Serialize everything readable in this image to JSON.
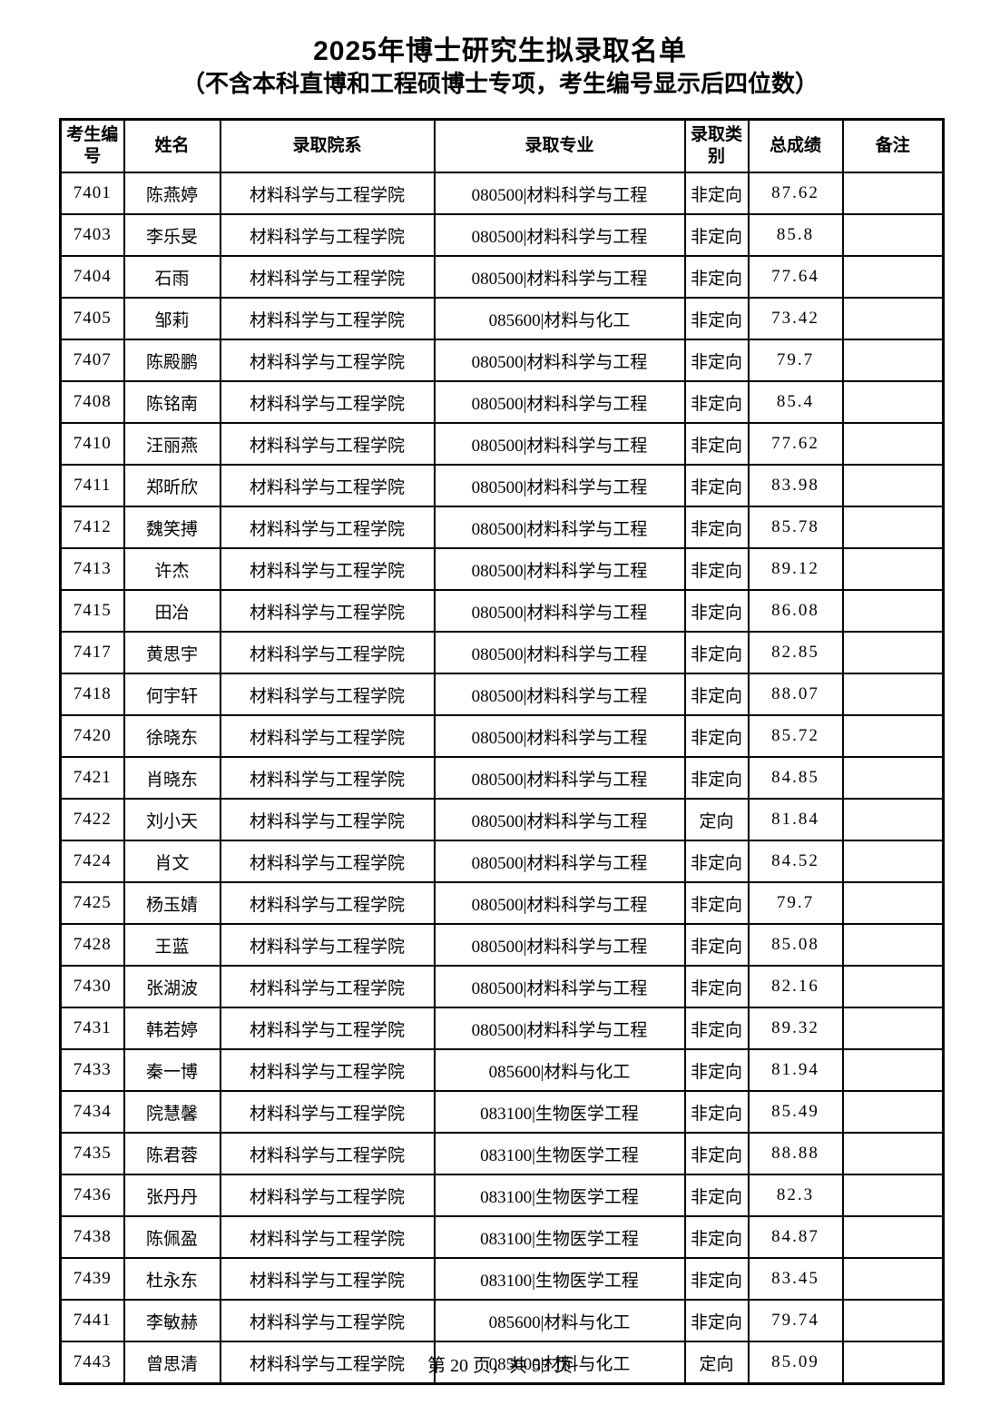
{
  "page": {
    "title": "2025年博士研究生拟录取名单",
    "subtitle": "（不含本科直博和工程硕博士专项，考生编号显示后四位数）",
    "footer": "第 20 页，共 55 页"
  },
  "table": {
    "columns": [
      "id",
      "name",
      "dept",
      "major",
      "category",
      "score",
      "remark"
    ],
    "headers": [
      "考生编号",
      "姓名",
      "录取院系",
      "录取专业",
      "录取类别",
      "总成绩",
      "备注"
    ],
    "rows": [
      {
        "id": "7401",
        "name": "陈燕婷",
        "dept": "材料科学与工程学院",
        "major": "080500|材料科学与工程",
        "category": "非定向",
        "score": "87.62",
        "remark": ""
      },
      {
        "id": "7403",
        "name": "李乐旻",
        "dept": "材料科学与工程学院",
        "major": "080500|材料科学与工程",
        "category": "非定向",
        "score": "85.8",
        "remark": ""
      },
      {
        "id": "7404",
        "name": "石雨",
        "dept": "材料科学与工程学院",
        "major": "080500|材料科学与工程",
        "category": "非定向",
        "score": "77.64",
        "remark": ""
      },
      {
        "id": "7405",
        "name": "邹莉",
        "dept": "材料科学与工程学院",
        "major": "085600|材料与化工",
        "category": "非定向",
        "score": "73.42",
        "remark": ""
      },
      {
        "id": "7407",
        "name": "陈殿鹏",
        "dept": "材料科学与工程学院",
        "major": "080500|材料科学与工程",
        "category": "非定向",
        "score": "79.7",
        "remark": ""
      },
      {
        "id": "7408",
        "name": "陈铭南",
        "dept": "材料科学与工程学院",
        "major": "080500|材料科学与工程",
        "category": "非定向",
        "score": "85.4",
        "remark": ""
      },
      {
        "id": "7410",
        "name": "汪丽燕",
        "dept": "材料科学与工程学院",
        "major": "080500|材料科学与工程",
        "category": "非定向",
        "score": "77.62",
        "remark": ""
      },
      {
        "id": "7411",
        "name": "郑昕欣",
        "dept": "材料科学与工程学院",
        "major": "080500|材料科学与工程",
        "category": "非定向",
        "score": "83.98",
        "remark": ""
      },
      {
        "id": "7412",
        "name": "魏笑搏",
        "dept": "材料科学与工程学院",
        "major": "080500|材料科学与工程",
        "category": "非定向",
        "score": "85.78",
        "remark": ""
      },
      {
        "id": "7413",
        "name": "许杰",
        "dept": "材料科学与工程学院",
        "major": "080500|材料科学与工程",
        "category": "非定向",
        "score": "89.12",
        "remark": ""
      },
      {
        "id": "7415",
        "name": "田冶",
        "dept": "材料科学与工程学院",
        "major": "080500|材料科学与工程",
        "category": "非定向",
        "score": "86.08",
        "remark": ""
      },
      {
        "id": "7417",
        "name": "黄思宇",
        "dept": "材料科学与工程学院",
        "major": "080500|材料科学与工程",
        "category": "非定向",
        "score": "82.85",
        "remark": ""
      },
      {
        "id": "7418",
        "name": "何宇轩",
        "dept": "材料科学与工程学院",
        "major": "080500|材料科学与工程",
        "category": "非定向",
        "score": "88.07",
        "remark": ""
      },
      {
        "id": "7420",
        "name": "徐晓东",
        "dept": "材料科学与工程学院",
        "major": "080500|材料科学与工程",
        "category": "非定向",
        "score": "85.72",
        "remark": ""
      },
      {
        "id": "7421",
        "name": "肖晓东",
        "dept": "材料科学与工程学院",
        "major": "080500|材料科学与工程",
        "category": "非定向",
        "score": "84.85",
        "remark": ""
      },
      {
        "id": "7422",
        "name": "刘小天",
        "dept": "材料科学与工程学院",
        "major": "080500|材料科学与工程",
        "category": "定向",
        "score": "81.84",
        "remark": ""
      },
      {
        "id": "7424",
        "name": "肖文",
        "dept": "材料科学与工程学院",
        "major": "080500|材料科学与工程",
        "category": "非定向",
        "score": "84.52",
        "remark": ""
      },
      {
        "id": "7425",
        "name": "杨玉婧",
        "dept": "材料科学与工程学院",
        "major": "080500|材料科学与工程",
        "category": "非定向",
        "score": "79.7",
        "remark": ""
      },
      {
        "id": "7428",
        "name": "王蓝",
        "dept": "材料科学与工程学院",
        "major": "080500|材料科学与工程",
        "category": "非定向",
        "score": "85.08",
        "remark": ""
      },
      {
        "id": "7430",
        "name": "张湖波",
        "dept": "材料科学与工程学院",
        "major": "080500|材料科学与工程",
        "category": "非定向",
        "score": "82.16",
        "remark": ""
      },
      {
        "id": "7431",
        "name": "韩若婷",
        "dept": "材料科学与工程学院",
        "major": "080500|材料科学与工程",
        "category": "非定向",
        "score": "89.32",
        "remark": ""
      },
      {
        "id": "7433",
        "name": "秦一博",
        "dept": "材料科学与工程学院",
        "major": "085600|材料与化工",
        "category": "非定向",
        "score": "81.94",
        "remark": ""
      },
      {
        "id": "7434",
        "name": "院慧馨",
        "dept": "材料科学与工程学院",
        "major": "083100|生物医学工程",
        "category": "非定向",
        "score": "85.49",
        "remark": ""
      },
      {
        "id": "7435",
        "name": "陈君蓉",
        "dept": "材料科学与工程学院",
        "major": "083100|生物医学工程",
        "category": "非定向",
        "score": "88.88",
        "remark": ""
      },
      {
        "id": "7436",
        "name": "张丹丹",
        "dept": "材料科学与工程学院",
        "major": "083100|生物医学工程",
        "category": "非定向",
        "score": "82.3",
        "remark": ""
      },
      {
        "id": "7438",
        "name": "陈佩盈",
        "dept": "材料科学与工程学院",
        "major": "083100|生物医学工程",
        "category": "非定向",
        "score": "84.87",
        "remark": ""
      },
      {
        "id": "7439",
        "name": "杜永东",
        "dept": "材料科学与工程学院",
        "major": "083100|生物医学工程",
        "category": "非定向",
        "score": "83.45",
        "remark": ""
      },
      {
        "id": "7441",
        "name": "李敏赫",
        "dept": "材料科学与工程学院",
        "major": "085600|材料与化工",
        "category": "非定向",
        "score": "79.74",
        "remark": ""
      },
      {
        "id": "7443",
        "name": "曾思清",
        "dept": "材料科学与工程学院",
        "major": "085600|材料与化工",
        "category": "定向",
        "score": "85.09",
        "remark": ""
      }
    ]
  }
}
